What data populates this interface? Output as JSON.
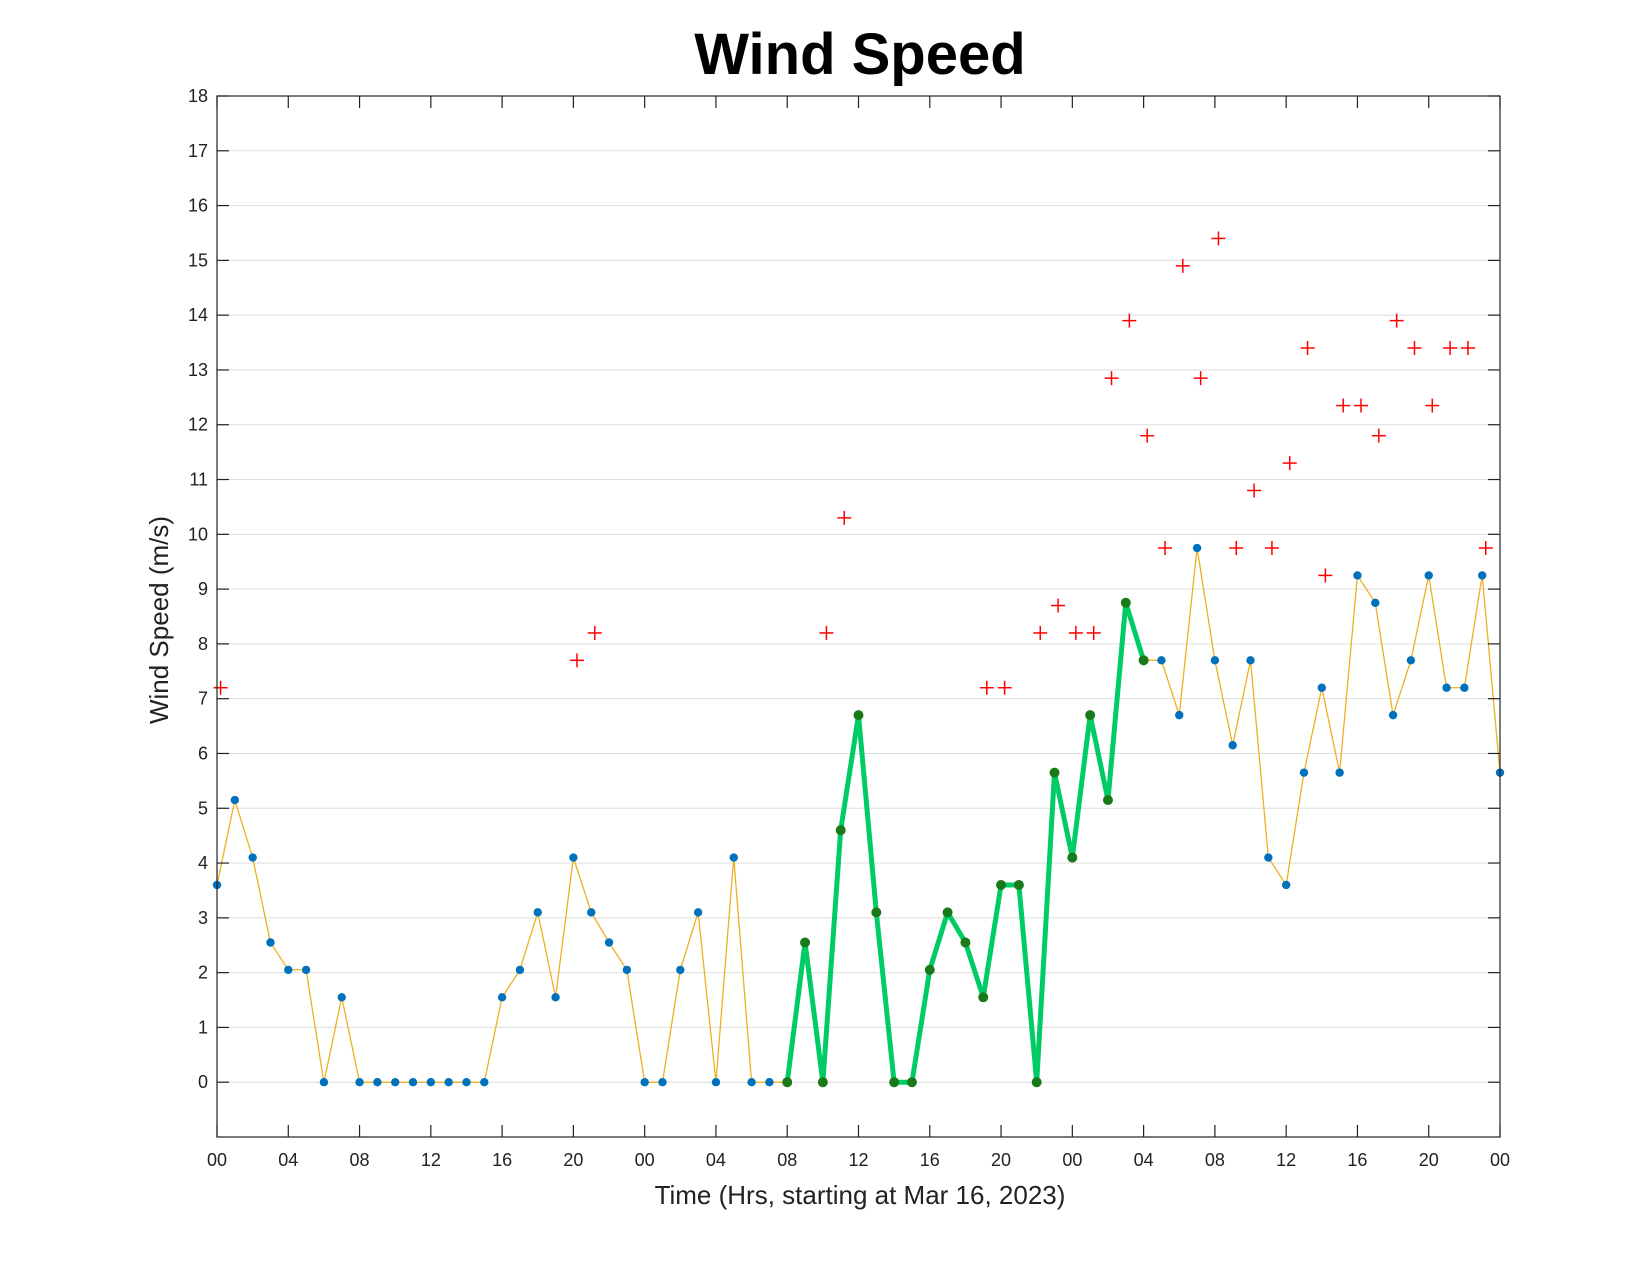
{
  "chart_data": {
    "type": "line",
    "title": "Wind Speed",
    "xlabel": "Time (Hrs, starting at Mar 16, 2023)",
    "ylabel": "Wind Speed (m/s)",
    "ylim": [
      -1,
      18
    ],
    "xlim": [
      0,
      72
    ],
    "x_unit": "hours since Mar 16, 2023 00:00",
    "y_ticks": [
      0,
      1,
      2,
      3,
      4,
      5,
      6,
      7,
      8,
      9,
      10,
      11,
      12,
      13,
      14,
      15,
      16,
      17,
      18
    ],
    "x_ticks": [
      {
        "x": 0,
        "label": "00"
      },
      {
        "x": 4,
        "label": "04"
      },
      {
        "x": 8,
        "label": "08"
      },
      {
        "x": 12,
        "label": "12"
      },
      {
        "x": 16,
        "label": "16"
      },
      {
        "x": 20,
        "label": "20"
      },
      {
        "x": 24,
        "label": "00"
      },
      {
        "x": 28,
        "label": "04"
      },
      {
        "x": 32,
        "label": "08"
      },
      {
        "x": 36,
        "label": "12"
      },
      {
        "x": 40,
        "label": "16"
      },
      {
        "x": 44,
        "label": "20"
      },
      {
        "x": 48,
        "label": "00"
      },
      {
        "x": 52,
        "label": "04"
      },
      {
        "x": 56,
        "label": "08"
      },
      {
        "x": 60,
        "label": "12"
      },
      {
        "x": 64,
        "label": "16"
      },
      {
        "x": 68,
        "label": "20"
      },
      {
        "x": 72,
        "label": "00"
      }
    ],
    "grid": "horizontal",
    "colors": {
      "line": "#edb120",
      "marker": "#0072bd",
      "highlight_line": "#00cc66",
      "highlight_marker": "#1a7a1a",
      "gust": "#ff0000"
    },
    "series": [
      {
        "style": "line-with-markers",
        "x": [
          0,
          1,
          2,
          3,
          4,
          5,
          6,
          7,
          8,
          9,
          10,
          11,
          12,
          13,
          14,
          15,
          16,
          17,
          18,
          19,
          20,
          21,
          22,
          23,
          24,
          25,
          26,
          27,
          28,
          29,
          30,
          31,
          32,
          33,
          34,
          35,
          36,
          37,
          38,
          39,
          40,
          41,
          42,
          43,
          44,
          45,
          46,
          47,
          48,
          49,
          50,
          51,
          52,
          53,
          54,
          55,
          56,
          57,
          58,
          59,
          60,
          61,
          62,
          63,
          64,
          65,
          66,
          67,
          68,
          69,
          70,
          71,
          72
        ],
        "values": [
          3.6,
          5.15,
          4.1,
          2.55,
          2.05,
          2.05,
          0,
          1.55,
          0,
          0,
          0,
          0,
          0,
          0,
          0,
          0,
          1.55,
          2.05,
          3.1,
          1.55,
          4.1,
          3.1,
          2.55,
          2.05,
          0,
          0,
          2.05,
          3.1,
          0,
          4.1,
          0,
          0,
          0,
          2.55,
          0,
          4.6,
          6.7,
          3.1,
          0,
          0,
          2.05,
          3.1,
          2.55,
          1.55,
          3.6,
          3.6,
          0,
          5.65,
          4.1,
          6.7,
          5.15,
          8.75,
          7.7,
          7.7,
          6.7,
          9.75,
          7.7,
          6.15,
          7.7,
          4.1,
          3.6,
          5.65,
          7.2,
          5.65,
          9.25,
          8.75,
          6.7,
          7.7,
          9.25,
          7.2,
          7.2,
          9.25,
          5.65
        ]
      },
      {
        "style": "highlight-segment",
        "x": [
          32,
          33,
          34,
          35,
          36,
          37,
          38,
          39,
          40,
          41,
          42,
          43,
          44,
          45,
          46,
          47,
          48,
          49,
          50,
          51,
          52
        ],
        "values": [
          0,
          2.55,
          0,
          4.6,
          6.7,
          3.1,
          0,
          0,
          2.05,
          3.1,
          2.55,
          1.55,
          3.6,
          3.6,
          0,
          5.65,
          4.1,
          6.7,
          5.15,
          8.75,
          7.7
        ]
      },
      {
        "style": "plus-markers",
        "x": [
          0.2,
          20.2,
          21.2,
          34.2,
          35.2,
          43.2,
          44.2,
          46.2,
          47.2,
          48.2,
          49.2,
          50.2,
          51.2,
          52.2,
          53.2,
          54.2,
          55.2,
          56.2,
          57.2,
          58.2,
          59.2,
          60.2,
          61.2,
          62.2,
          63.2,
          64.2,
          65.2,
          66.2,
          67.2,
          68.2,
          69.2,
          70.2,
          71.2
        ],
        "values": [
          7.2,
          7.7,
          8.2,
          8.2,
          10.3,
          7.2,
          7.2,
          8.2,
          8.7,
          8.2,
          8.2,
          12.85,
          13.9,
          11.8,
          9.75,
          14.9,
          12.85,
          15.4,
          9.75,
          10.8,
          9.75,
          11.3,
          13.4,
          9.25,
          12.35,
          12.35,
          11.8,
          13.9,
          13.4,
          12.35,
          13.4,
          13.4,
          9.75
        ]
      }
    ]
  }
}
